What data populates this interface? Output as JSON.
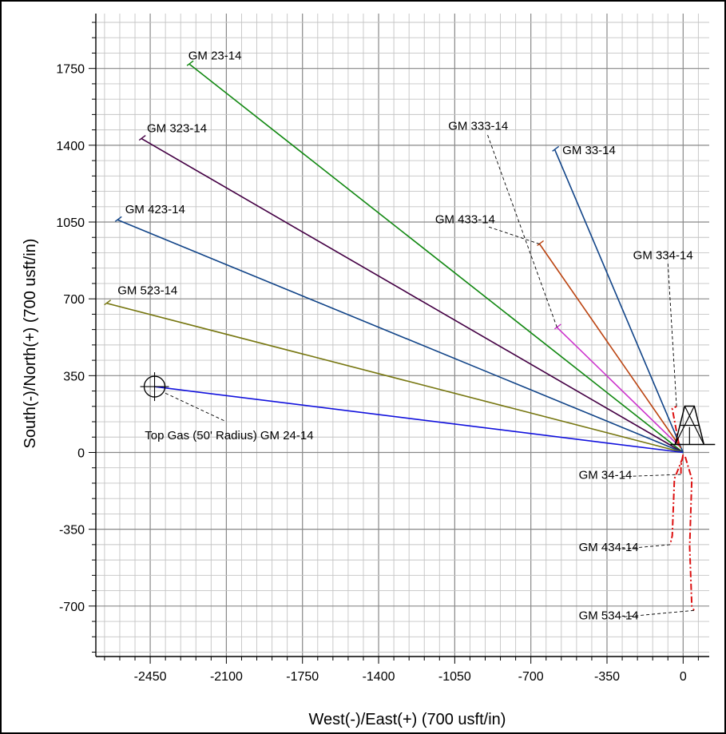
{
  "chart_data": {
    "type": "line",
    "title": "",
    "xlabel": "West(-)/East(+) (700 usft/in)",
    "ylabel": "South(-)/North(+) (700 usft/in)",
    "xlim": [
      -2700,
      120
    ],
    "ylim": [
      -930,
      2000
    ],
    "x_ticks": [
      -2450,
      -2100,
      -1750,
      -1400,
      -1050,
      -700,
      -350,
      0
    ],
    "y_ticks": [
      1750,
      1400,
      1050,
      700,
      350,
      0,
      -350,
      -700
    ],
    "x_tick_labels": [
      "-2450",
      "-2100",
      "-1750",
      "-1400",
      "-1050",
      "-700",
      "-350",
      "0"
    ],
    "y_tick_labels": [
      "1750",
      "1400",
      "1050",
      "700",
      "350",
      "0",
      "-350",
      "-700"
    ],
    "grid": true,
    "grid_minor_step": 70,
    "grid_major_step": 350,
    "rig_color": "#000000",
    "series": [
      {
        "name": "GM 23-14",
        "color": "#118811",
        "style": "solid",
        "points": [
          [
            0,
            0
          ],
          [
            -2270,
            1770
          ]
        ],
        "label_at": [
          -2275,
          1790
        ]
      },
      {
        "name": "GM 323-14",
        "color": "#440044",
        "style": "solid",
        "points": [
          [
            0,
            0
          ],
          [
            -2490,
            1430
          ]
        ],
        "label_at": [
          -2465,
          1460
        ]
      },
      {
        "name": "GM 423-14",
        "color": "#114488",
        "style": "solid",
        "points": [
          [
            0,
            0
          ],
          [
            -2600,
            1060
          ]
        ],
        "label_at": [
          -2565,
          1090
        ]
      },
      {
        "name": "GM 523-14",
        "color": "#777711",
        "style": "solid",
        "points": [
          [
            0,
            0
          ],
          [
            -2650,
            680
          ]
        ],
        "label_at": [
          -2600,
          720
        ]
      },
      {
        "name": "Top Gas (50' Radius) GM 24-14",
        "color": "#1111dd",
        "style": "solid",
        "points": [
          [
            0,
            0
          ],
          [
            -2430,
            300
          ]
        ],
        "label_at": [
          -2475,
          60
        ],
        "target_at": [
          -2430,
          300
        ],
        "leader": [
          [
            -2380,
            270
          ],
          [
            -2100,
            140
          ]
        ]
      },
      {
        "name": "GM 333-14",
        "color": "#cc33cc",
        "style": "solid",
        "points": [
          [
            -20,
            30
          ],
          [
            -580,
            570
          ]
        ],
        "label_at": [
          -1080,
          1470
        ],
        "leader": [
          [
            -580,
            570
          ],
          [
            -900,
            1450
          ]
        ]
      },
      {
        "name": "GM 33-14",
        "color": "#114488",
        "style": "solid",
        "points": [
          [
            0,
            0
          ],
          [
            -590,
            1380
          ]
        ],
        "label_at": [
          -555,
          1360
        ]
      },
      {
        "name": "GM 433-14",
        "color": "#bb4411",
        "style": "solid",
        "points": [
          [
            -10,
            20
          ],
          [
            -660,
            950
          ]
        ],
        "label_at": [
          -1140,
          1045
        ],
        "leader": [
          [
            -660,
            950
          ],
          [
            -900,
            1030
          ]
        ]
      },
      {
        "name": "GM 334-14",
        "color": "#dd1111",
        "style": "dashdot",
        "points": [
          [
            -20,
            40
          ],
          [
            -50,
            200
          ],
          [
            -30,
            210
          ]
        ],
        "label_at": [
          -230,
          880
        ],
        "leader": [
          [
            -30,
            210
          ],
          [
            -70,
            860
          ]
        ]
      },
      {
        "name": "GM 34-14",
        "color": "#dd1111",
        "style": "dashdot",
        "points": [
          [
            0,
            -10
          ],
          [
            -10,
            -60
          ],
          [
            -10,
            -100
          ]
        ],
        "label_at": [
          -480,
          -120
        ],
        "leader": [
          [
            -10,
            -100
          ],
          [
            -280,
            -110
          ]
        ]
      },
      {
        "name": "GM 434-14",
        "color": "#dd1111",
        "style": "dashdot",
        "points": [
          [
            0,
            -20
          ],
          [
            -40,
            -120
          ],
          [
            -50,
            -380
          ],
          [
            -60,
            -420
          ]
        ],
        "label_at": [
          -480,
          -450
        ],
        "leader": [
          [
            -60,
            -420
          ],
          [
            -280,
            -440
          ]
        ]
      },
      {
        "name": "GM 534-14",
        "color": "#dd1111",
        "style": "dashdot",
        "points": [
          [
            10,
            -20
          ],
          [
            40,
            -120
          ],
          [
            30,
            -430
          ],
          [
            40,
            -700
          ],
          [
            50,
            -720
          ]
        ],
        "label_at": [
          -480,
          -760
        ],
        "leader": [
          [
            50,
            -720
          ],
          [
            -280,
            -750
          ]
        ]
      }
    ]
  }
}
